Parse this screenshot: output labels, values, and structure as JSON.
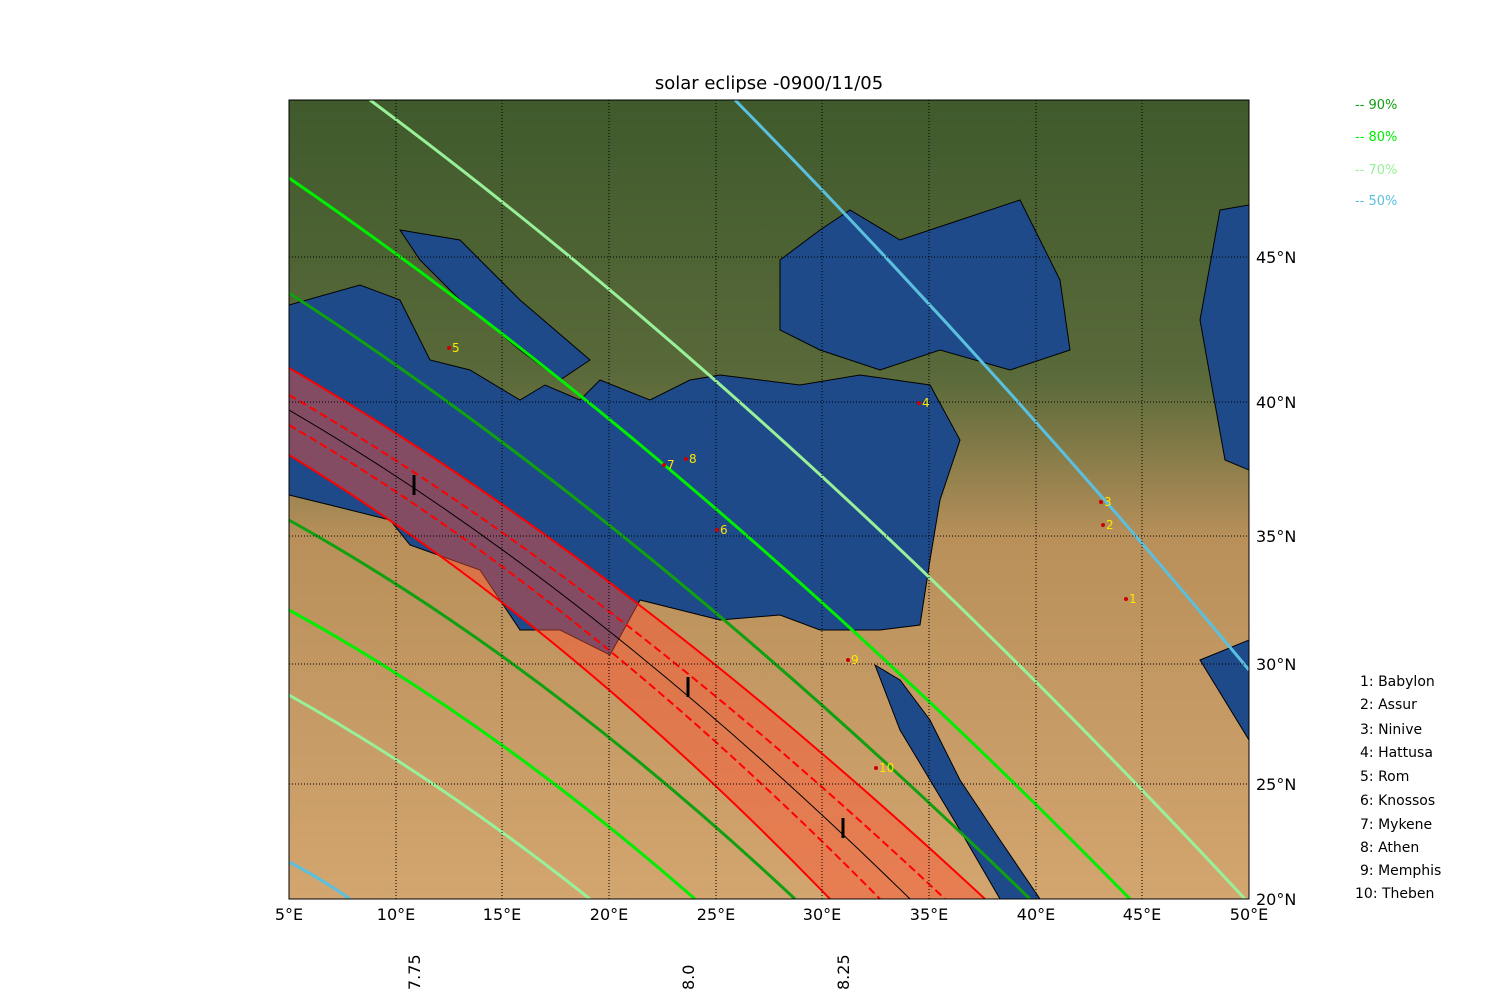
{
  "title": "solar eclipse -0900/11/05",
  "x_ticks": [
    "5°E",
    "10°E",
    "15°E",
    "20°E",
    "25°E",
    "30°E",
    "35°E",
    "40°E",
    "45°E",
    "50°E"
  ],
  "y_ticks": [
    "20°N",
    "25°N",
    "30°N",
    "35°N",
    "40°N",
    "45°N"
  ],
  "legend": [
    "-- 90%",
    "-- 80%",
    "-- 70%",
    "-- 50%"
  ],
  "map_labels": [
    "1",
    "2",
    "3",
    "4",
    "5",
    "6",
    "7",
    "8",
    "9",
    "10"
  ],
  "city_list": [
    "1: Babylon",
    "2: Assur",
    "3: Ninive",
    "4: Hattusa",
    "5: Rom",
    "6: Knossos",
    "7: Mykene",
    "8: Athen",
    "9: Memphis",
    "10: Theben"
  ],
  "time_labels": [
    "7.75",
    "8.0",
    "8.25"
  ]
}
